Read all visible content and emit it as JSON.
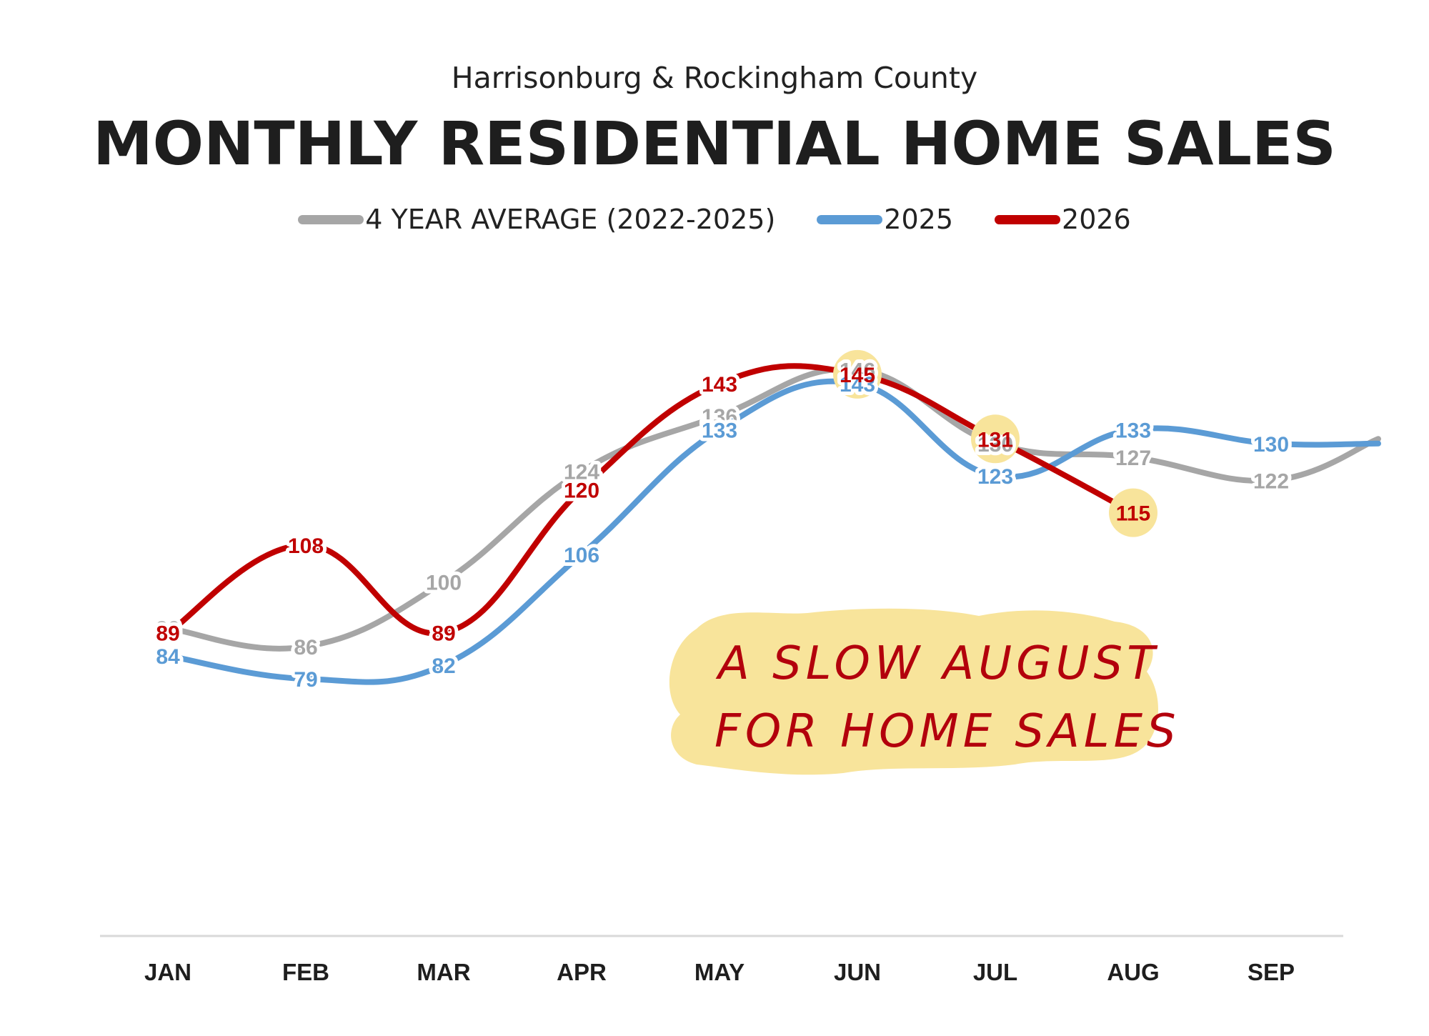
{
  "header": {
    "subtitle": "Harrisonburg & Rockingham County",
    "title": "MONTHLY RESIDENTIAL HOME SALES"
  },
  "chart_data": {
    "type": "line",
    "categories": [
      "JAN",
      "FEB",
      "MAR",
      "APR",
      "MAY",
      "JUN",
      "JUL",
      "AUG",
      "SEP"
    ],
    "series": [
      {
        "name": "4 YEAR AVERAGE (2022-2025)",
        "color": "#a6a6a6",
        "values": [
          90,
          86,
          100,
          124,
          136,
          146,
          130,
          127,
          122
        ]
      },
      {
        "name": "2025",
        "color": "#5b9bd5",
        "values": [
          84,
          79,
          82,
          106,
          133,
          143,
          123,
          133,
          130
        ]
      },
      {
        "name": "2026",
        "color": "#c00000",
        "values": [
          89,
          108,
          89,
          120,
          143,
          145,
          131,
          115,
          null
        ]
      }
    ],
    "highlighted_points": [
      {
        "series": "2026",
        "category": "JUN"
      },
      {
        "series": "2026",
        "category": "JUL"
      },
      {
        "series": "2026",
        "category": "AUG"
      }
    ],
    "highlight_color": "#f8e49b",
    "annotation": [
      "A SLOW AUGUST",
      "FOR HOME SALES"
    ],
    "ylim": [
      40,
      160
    ],
    "grid": false,
    "legend_position": "top"
  }
}
